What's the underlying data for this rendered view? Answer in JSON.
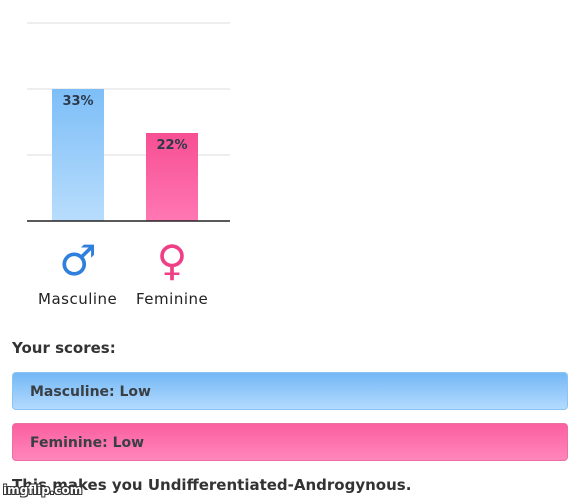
{
  "chart_data": {
    "type": "bar",
    "categories": [
      "Masculine",
      "Feminine"
    ],
    "values": [
      33,
      22
    ],
    "value_labels": [
      "33%",
      "22%"
    ],
    "ylim": [
      0,
      100
    ],
    "grid": true,
    "colors": {
      "Masculine": "#8cc9fb",
      "Feminine": "#f74f93"
    }
  },
  "symbols": {
    "masculine": "♂",
    "feminine": "♀"
  },
  "scores": {
    "heading": "Your scores:",
    "masculine": "Masculine: Low",
    "feminine": "Feminine: Low"
  },
  "result": "This makes you Undifferentiated-Androgynous.",
  "watermark": "imgflip.com",
  "colors": {
    "masculine_symbol": "#2f7fdc",
    "feminine_symbol": "#ef3f86"
  }
}
